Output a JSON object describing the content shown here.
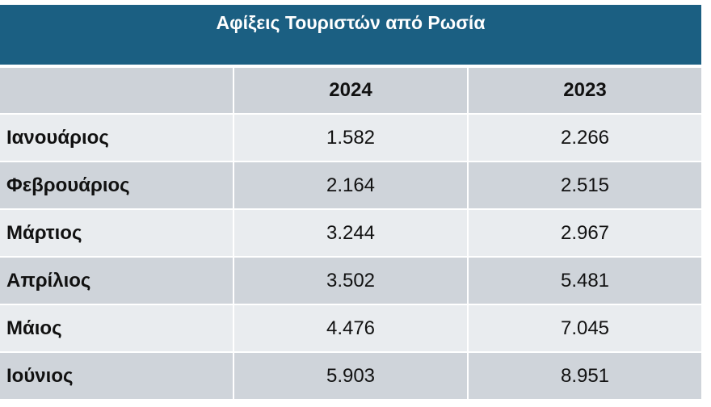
{
  "title": "Αφίξεις Τουριστών από Ρωσία",
  "table": {
    "header": [
      "",
      "2024",
      "2023"
    ],
    "rows": [
      [
        "Ιανουάριος",
        "1.582",
        "2.266"
      ],
      [
        "Φεβρουάριος",
        "2.164",
        "2.515"
      ],
      [
        "Μάρτιος",
        "3.244",
        "2.967"
      ],
      [
        "Απρίλιος",
        "3.502",
        "5.481"
      ],
      [
        "Μάιος",
        "4.476",
        "7.045"
      ],
      [
        "Ιούνιος",
        "5.903",
        "8.951"
      ]
    ]
  }
}
